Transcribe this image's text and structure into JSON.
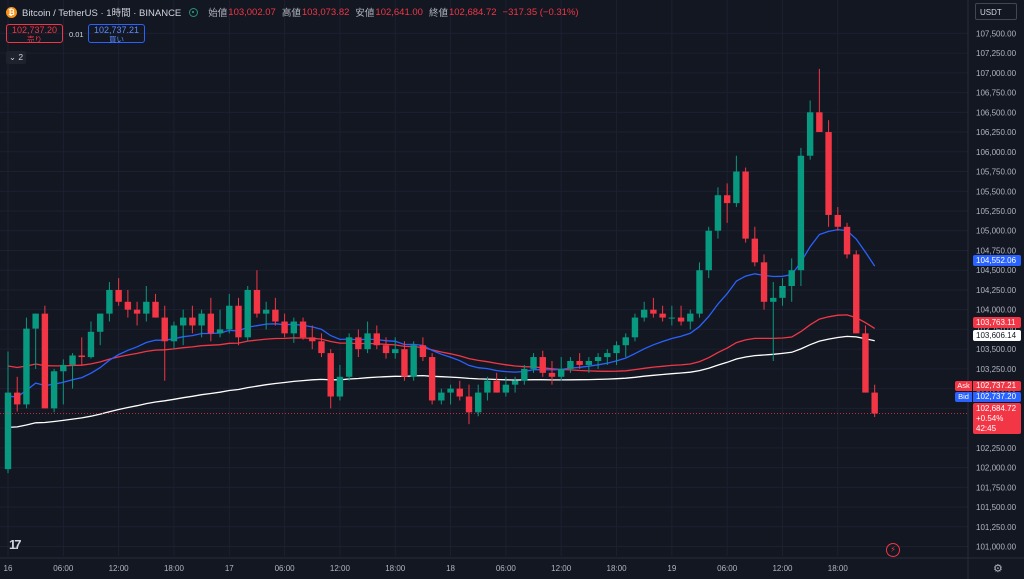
{
  "header": {
    "symbol_title": "Bitcoin / TetherUS · 1時間 · BINANCE",
    "open_label": "始値",
    "open_value": "103,002.07",
    "high_label": "高値",
    "high_value": "103,073.82",
    "low_label": "安値",
    "low_value": "102,641.00",
    "close_label": "終値",
    "close_value": "102,684.72",
    "change": "−317.35 (−0.31%)"
  },
  "trade": {
    "sell_price": "102,737.20",
    "sell_label": "売り",
    "spread": "0.01",
    "buy_price": "102,737.21",
    "buy_label": "買い"
  },
  "collapse_label": "⌄ 2",
  "currency_button": "USDT",
  "price_labels": {
    "ema_blue": "104,552.06",
    "ema_red": "103,763.11",
    "ema_white": "103,606.14",
    "ask_tag": "Ask",
    "ask": "102,737.21",
    "bid_tag": "Bid",
    "bid": "102,737.20",
    "last": "102,684.72",
    "last_pct": "+0.54%",
    "countdown": "42:45"
  },
  "colors": {
    "up": "#089981",
    "down": "#f23645",
    "ema_blue": "#2962ff",
    "ema_red": "#f23645",
    "ema_white": "#ffffff",
    "bg": "#131722"
  },
  "icons": {
    "logo": "tradingview-logo-icon",
    "settings": "gear-icon",
    "alert": "lightning-icon"
  },
  "chart_data": {
    "type": "candlestick",
    "y_ticks": [
      "107,500.00",
      "107,250.00",
      "107,000.00",
      "106,750.00",
      "106,500.00",
      "106,250.00",
      "106,000.00",
      "105,750.00",
      "105,500.00",
      "105,250.00",
      "105,000.00",
      "104,750.00",
      "104,500.00",
      "104,250.00",
      "104,000.00",
      "103,750.00",
      "103,500.00",
      "103,250.00",
      "103,000.00",
      "102,750.00",
      "102,500.00",
      "102,250.00",
      "102,000.00",
      "101,750.00",
      "101,500.00",
      "101,250.00",
      "101,000.00"
    ],
    "y_tick_values": [
      107500,
      107250,
      107000,
      106750,
      106500,
      106250,
      106000,
      105750,
      105500,
      105250,
      105000,
      104750,
      104500,
      104250,
      104000,
      103750,
      103500,
      103250,
      103000,
      102750,
      102500,
      102250,
      102000,
      101750,
      101500,
      101250,
      101000
    ],
    "ylim": [
      100880,
      107720
    ],
    "x_ticks": [
      {
        "label": "16",
        "i": 0
      },
      {
        "label": "06:00",
        "i": 6
      },
      {
        "label": "12:00",
        "i": 12
      },
      {
        "label": "18:00",
        "i": 18
      },
      {
        "label": "17",
        "i": 24
      },
      {
        "label": "06:00",
        "i": 30
      },
      {
        "label": "12:00",
        "i": 36
      },
      {
        "label": "18:00",
        "i": 42
      },
      {
        "label": "18",
        "i": 48
      },
      {
        "label": "06:00",
        "i": 54
      },
      {
        "label": "12:00",
        "i": 60
      },
      {
        "label": "18:00",
        "i": 66
      },
      {
        "label": "19",
        "i": 72
      },
      {
        "label": "06:00",
        "i": 78
      },
      {
        "label": "12:00",
        "i": 84
      },
      {
        "label": "18:00",
        "i": 90
      }
    ],
    "candles": [
      [
        101980,
        103470,
        101930,
        102950
      ],
      [
        102950,
        103150,
        102710,
        102800
      ],
      [
        102800,
        103900,
        102750,
        103760
      ],
      [
        103760,
        103950,
        103250,
        103950
      ],
      [
        103950,
        104050,
        102750,
        102750
      ],
      [
        102750,
        103250,
        102700,
        103220
      ],
      [
        103220,
        103370,
        102800,
        103300
      ],
      [
        103300,
        103450,
        103000,
        103420
      ],
      [
        103420,
        103650,
        103300,
        103400
      ],
      [
        103400,
        103850,
        103380,
        103720
      ],
      [
        103720,
        103950,
        103550,
        103950
      ],
      [
        103950,
        104350,
        103850,
        104250
      ],
      [
        104250,
        104400,
        104050,
        104100
      ],
      [
        104100,
        104250,
        103900,
        104000
      ],
      [
        104000,
        104100,
        103800,
        103950
      ],
      [
        103950,
        104300,
        103850,
        104100
      ],
      [
        104100,
        104200,
        103900,
        103900
      ],
      [
        103900,
        104050,
        103100,
        103600
      ],
      [
        103600,
        103850,
        103500,
        103800
      ],
      [
        103800,
        104000,
        103550,
        103900
      ],
      [
        103900,
        104050,
        103700,
        103800
      ],
      [
        103800,
        104000,
        103650,
        103950
      ],
      [
        103950,
        104150,
        103600,
        103700
      ],
      [
        103700,
        104000,
        103650,
        103750
      ],
      [
        103750,
        104200,
        103700,
        104050
      ],
      [
        104050,
        104150,
        103550,
        103650
      ],
      [
        103650,
        104300,
        103600,
        104250
      ],
      [
        104250,
        104500,
        103900,
        103950
      ],
      [
        103950,
        104100,
        103750,
        104000
      ],
      [
        104000,
        104150,
        103800,
        103850
      ],
      [
        103850,
        103950,
        103650,
        103700
      ],
      [
        103700,
        103900,
        103580,
        103850
      ],
      [
        103850,
        103900,
        103620,
        103650
      ],
      [
        103650,
        103800,
        103500,
        103600
      ],
      [
        103600,
        103700,
        103400,
        103450
      ],
      [
        103450,
        103500,
        102750,
        102900
      ],
      [
        102900,
        103300,
        102850,
        103150
      ],
      [
        103150,
        103700,
        103100,
        103650
      ],
      [
        103650,
        103750,
        103400,
        103500
      ],
      [
        103500,
        103850,
        103450,
        103700
      ],
      [
        103700,
        103800,
        103500,
        103550
      ],
      [
        103550,
        103650,
        103380,
        103450
      ],
      [
        103450,
        103650,
        103380,
        103500
      ],
      [
        103500,
        103600,
        103100,
        103150
      ],
      [
        103150,
        103600,
        103100,
        103550
      ],
      [
        103550,
        103650,
        103350,
        103400
      ],
      [
        103400,
        103450,
        102800,
        102850
      ],
      [
        102850,
        103000,
        102800,
        102950
      ],
      [
        102950,
        103050,
        102800,
        103000
      ],
      [
        103000,
        103100,
        102850,
        102900
      ],
      [
        102900,
        103050,
        102550,
        102700
      ],
      [
        102700,
        103050,
        102650,
        102950
      ],
      [
        102950,
        103150,
        102850,
        103100
      ],
      [
        103100,
        103200,
        102950,
        102950
      ],
      [
        102950,
        103150,
        102900,
        103050
      ],
      [
        103050,
        103150,
        102950,
        103100
      ],
      [
        103100,
        103300,
        103050,
        103250
      ],
      [
        103250,
        103450,
        103200,
        103400
      ],
      [
        103400,
        103480,
        103150,
        103200
      ],
      [
        103200,
        103350,
        103050,
        103150
      ],
      [
        103150,
        103400,
        103100,
        103250
      ],
      [
        103250,
        103400,
        103200,
        103350
      ],
      [
        103350,
        103450,
        103250,
        103300
      ],
      [
        103300,
        103400,
        103200,
        103350
      ],
      [
        103350,
        103450,
        103250,
        103400
      ],
      [
        103400,
        103500,
        103300,
        103450
      ],
      [
        103450,
        103600,
        103300,
        103550
      ],
      [
        103550,
        103700,
        103400,
        103650
      ],
      [
        103650,
        103950,
        103600,
        103900
      ],
      [
        103900,
        104100,
        103850,
        104000
      ],
      [
        104000,
        104150,
        103900,
        103950
      ],
      [
        103950,
        104050,
        103850,
        103900
      ],
      [
        103900,
        104050,
        103800,
        103900
      ],
      [
        103900,
        104050,
        103800,
        103850
      ],
      [
        103850,
        104000,
        103750,
        103950
      ],
      [
        103950,
        104600,
        103900,
        104500
      ],
      [
        104500,
        105050,
        104400,
        105000
      ],
      [
        105000,
        105550,
        104900,
        105450
      ],
      [
        105450,
        105600,
        105100,
        105350
      ],
      [
        105350,
        105950,
        105300,
        105750
      ],
      [
        105750,
        105800,
        104850,
        104900
      ],
      [
        104900,
        105050,
        104550,
        104600
      ],
      [
        104600,
        104700,
        104000,
        104100
      ],
      [
        104100,
        104350,
        103350,
        104150
      ],
      [
        104150,
        104400,
        104050,
        104300
      ],
      [
        104300,
        104650,
        104100,
        104500
      ],
      [
        104500,
        106050,
        104300,
        105950
      ],
      [
        105950,
        106650,
        105900,
        106500
      ],
      [
        106500,
        107050,
        106300,
        106250
      ],
      [
        106250,
        106400,
        105050,
        105200
      ],
      [
        105200,
        105300,
        105000,
        105050
      ],
      [
        105050,
        105100,
        104650,
        104700
      ],
      [
        104700,
        104750,
        103700,
        103700
      ],
      [
        103700,
        103800,
        102950,
        102950
      ],
      [
        102950,
        103050,
        102640,
        102685
      ]
    ],
    "ema_blue_last": 104552.06,
    "ema_red_last": 103763.11,
    "ema_white_last": 103606.14,
    "ask": 102737.21,
    "bid": 102737.2,
    "last": 102684.72
  }
}
